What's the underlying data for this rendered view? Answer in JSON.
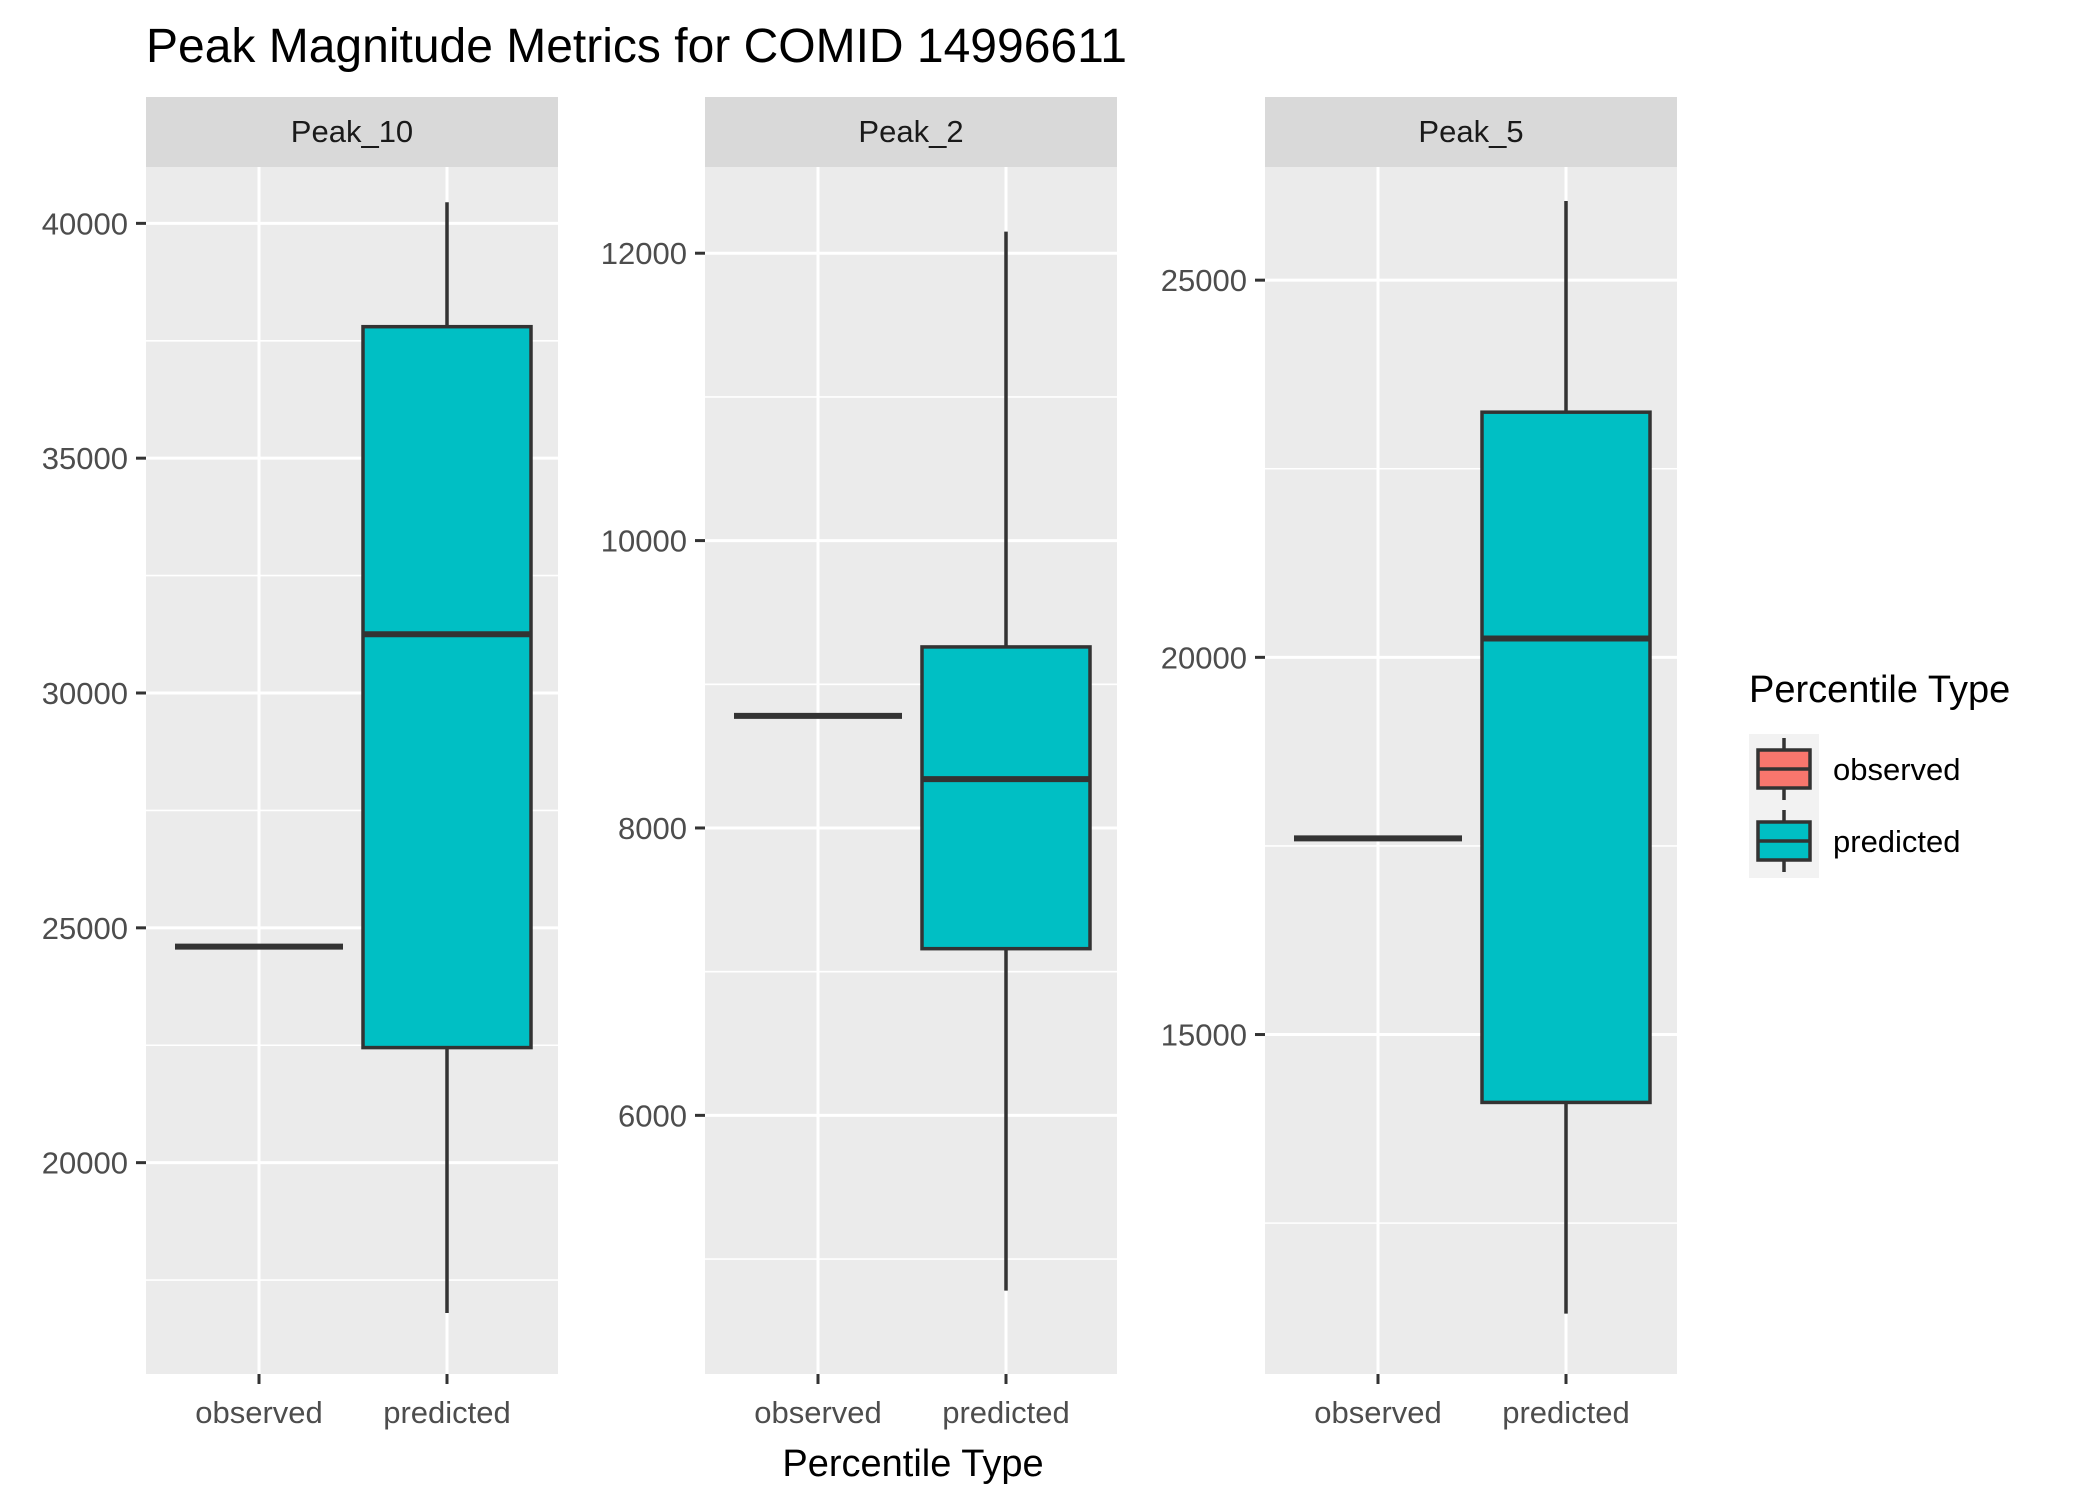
{
  "chart_data": {
    "type": "boxplot",
    "title": "Peak Magnitude Metrics for COMID 14996611",
    "xlabel": "Percentile Type",
    "ylabel": "",
    "categories": [
      "observed",
      "predicted"
    ],
    "legend": {
      "title": "Percentile Type",
      "position": "right",
      "entries": [
        {
          "label": "observed",
          "color": "#F8766D"
        },
        {
          "label": "predicted",
          "color": "#00BFC4"
        }
      ]
    },
    "grid": true,
    "facet_scales": "free_y",
    "panels": [
      {
        "name": "Peak_10",
        "ylim": [
          15500,
          41200
        ],
        "yticks": [
          20000,
          25000,
          30000,
          35000,
          40000
        ],
        "tick_labels": [
          "20000",
          "25000",
          "30000",
          "35000",
          "40000"
        ],
        "boxes": [
          {
            "category": "observed",
            "min": 24600,
            "q1": 24600,
            "median": 24600,
            "q3": 24600,
            "max": 24600
          },
          {
            "category": "predicted",
            "min": 16800,
            "q1": 22450,
            "median": 31250,
            "q3": 37800,
            "max": 40450
          }
        ]
      },
      {
        "name": "Peak_2",
        "ylim": [
          4200,
          12600
        ],
        "yticks": [
          6000,
          8000,
          10000,
          12000
        ],
        "tick_labels": [
          "6000",
          "8000",
          "10000",
          "12000"
        ],
        "boxes": [
          {
            "category": "observed",
            "min": 8780,
            "q1": 8780,
            "median": 8780,
            "q3": 8780,
            "max": 8780
          },
          {
            "category": "predicted",
            "min": 4780,
            "q1": 7160,
            "median": 8340,
            "q3": 9260,
            "max": 12150
          }
        ]
      },
      {
        "name": "Peak_5",
        "ylim": [
          10500,
          26500
        ],
        "yticks": [
          15000,
          20000,
          25000
        ],
        "tick_labels": [
          "15000",
          "20000",
          "25000"
        ],
        "boxes": [
          {
            "category": "observed",
            "min": 17600,
            "q1": 17600,
            "median": 17600,
            "q3": 17600,
            "max": 17600
          },
          {
            "category": "predicted",
            "min": 11300,
            "q1": 14100,
            "median": 20250,
            "q3": 23250,
            "max": 26050
          }
        ]
      }
    ]
  },
  "colors": {
    "panel_background": "#EBEBEB",
    "strip_background": "#D9D9D9",
    "grid": "#FFFFFF",
    "box_line": "#333333",
    "predicted_fill": "#00BFC4",
    "observed_fill": "#F8766D"
  }
}
